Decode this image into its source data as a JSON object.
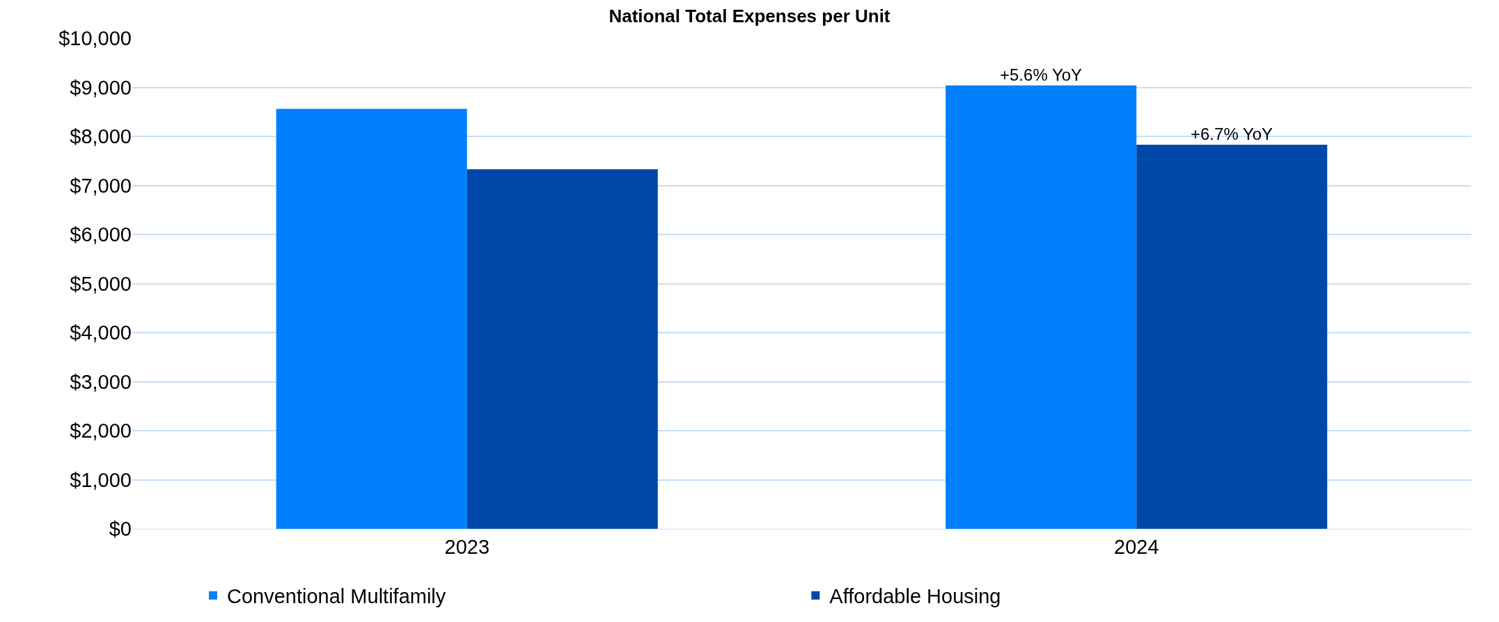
{
  "chart_data": {
    "type": "bar",
    "title": "National Total Expenses per Unit",
    "categories": [
      "2023",
      "2024"
    ],
    "series": [
      {
        "name": "Conventional Multifamily",
        "color": "#0080ff",
        "values": [
          8560,
          9040
        ]
      },
      {
        "name": "Affordable Housing",
        "color": "#0048a8",
        "values": [
          7330,
          7830
        ]
      }
    ],
    "ylim": [
      0,
      10000
    ],
    "yticks": [
      {
        "value": 0,
        "label": "$0"
      },
      {
        "value": 1000,
        "label": "$1,000"
      },
      {
        "value": 2000,
        "label": "$2,000"
      },
      {
        "value": 3000,
        "label": "$3,000"
      },
      {
        "value": 4000,
        "label": "$4,000"
      },
      {
        "value": 5000,
        "label": "$5,000"
      },
      {
        "value": 6000,
        "label": "$6,000"
      },
      {
        "value": 7000,
        "label": "$7,000"
      },
      {
        "value": 8000,
        "label": "$8,000"
      },
      {
        "value": 9000,
        "label": "$9,000"
      },
      {
        "value": 10000,
        "label": "$10,000"
      }
    ],
    "annotations": [
      "+5.6% YoY",
      "+6.7% YoY"
    ],
    "grid": "y",
    "legend": "bottom"
  }
}
